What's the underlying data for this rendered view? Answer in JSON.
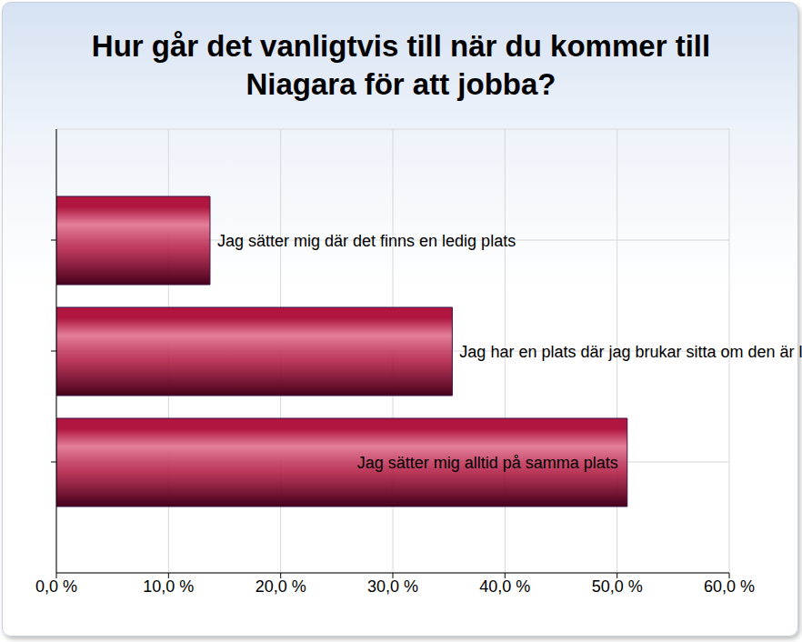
{
  "chart_data": {
    "type": "bar",
    "title": "Hur går det vanligtvis till när du kommer till Niagara för att jobba?",
    "orientation": "horizontal",
    "categories": [
      "Jag sätter mig där det finns en ledig plats",
      "Jag har en plats där jag brukar sitta om den är ledig",
      "Jag sätter mig alltid på samma plats"
    ],
    "values": [
      13.7,
      35.3,
      50.9
    ],
    "color": "#b0163f",
    "xlim": [
      0,
      60
    ],
    "xticks": [
      {
        "value": 0,
        "label": "0,0 %"
      },
      {
        "value": 10,
        "label": "10,0 %"
      },
      {
        "value": 20,
        "label": "20,0 %"
      },
      {
        "value": 30,
        "label": "30,0 %"
      },
      {
        "value": 40,
        "label": "40,0 %"
      },
      {
        "value": 50,
        "label": "50,0 %"
      },
      {
        "value": 60,
        "label": "60,0 %"
      }
    ],
    "grid": true
  }
}
